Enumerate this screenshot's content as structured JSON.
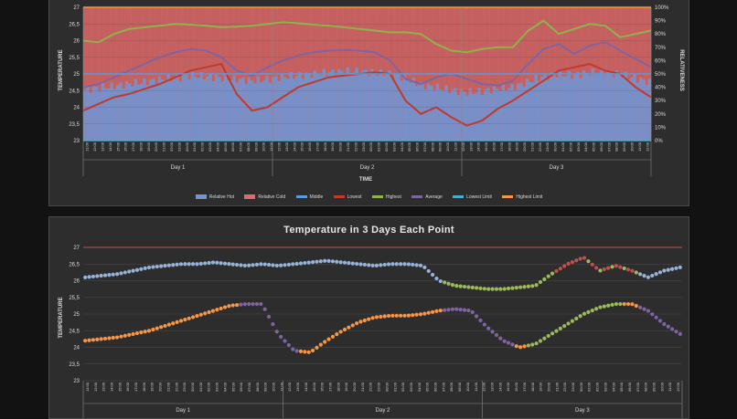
{
  "chart_data": [
    {
      "type": "line",
      "title": "",
      "xlabel": "TIME",
      "ylabel": "TEMPERATURE",
      "y2label": "RELATIVENESS",
      "ylim": [
        23,
        27
      ],
      "yticks": [
        "23",
        "23,5",
        "24",
        "24,5",
        "25",
        "25,5",
        "26",
        "26,5",
        "27"
      ],
      "y2lim": [
        0,
        100
      ],
      "y2ticks": [
        "0%",
        "10%",
        "20%",
        "30%",
        "40%",
        "50%",
        "60%",
        "70%",
        "80%",
        "90%",
        "100%"
      ],
      "day_labels": [
        "Day 1",
        "Day 2",
        "Day 3"
      ],
      "x_tick_labels": [
        "11:00",
        "12:00",
        "13:00",
        "14:00",
        "15:00",
        "16:00",
        "17:00",
        "18:00",
        "19:00",
        "20:00",
        "21:00",
        "22:00",
        "23:00",
        "00:00",
        "01:00",
        "02:00",
        "03:00",
        "04:00",
        "05:00",
        "06:00",
        "07:00",
        "08:00",
        "09:00",
        "10:00",
        "11:00",
        "12:00",
        "13:00",
        "14:00",
        "15:00",
        "16:00",
        "17:00",
        "18:00",
        "19:00",
        "20:00",
        "21:00",
        "22:00",
        "23:00",
        "00:00",
        "01:00",
        "02:00",
        "03:00",
        "04:00",
        "05:00",
        "06:00",
        "07:00",
        "08:00",
        "09:00",
        "10:00",
        "11:00",
        "12:00",
        "13:00",
        "14:00",
        "15:00",
        "16:00",
        "17:00",
        "18:00",
        "19:00",
        "20:00",
        "21:00",
        "22:00",
        "23:00",
        "00:00",
        "01:00",
        "02:00",
        "03:00",
        "04:00",
        "05:00",
        "06:00",
        "07:00",
        "08:00",
        "09:00",
        "10:00",
        "11:00",
        "12:00"
      ],
      "legend_position": "bottom",
      "legend": [
        "Relative Hot",
        "Relative Cold",
        "Middle",
        "Lowest",
        "Highest",
        "Average",
        "Lowest Limit",
        "Highest Limit"
      ],
      "colors": {
        "relative_hot": "#6f95d4",
        "relative_cold": "#e06a6a",
        "middle": "#5b9bd5",
        "lowest": "#c0392b",
        "highest": "#8fb34a",
        "average": "#8064a2",
        "lowest_limit": "#4bacc6",
        "highest_limit": "#f79646"
      },
      "series": [
        {
          "name": "Highest",
          "values": [
            26.0,
            25.95,
            26.2,
            26.35,
            26.4,
            26.45,
            26.5,
            26.48,
            26.45,
            26.4,
            26.42,
            26.45,
            26.5,
            26.55,
            26.52,
            26.48,
            26.45,
            26.4,
            26.35,
            26.3,
            26.25,
            26.25,
            26.2,
            25.9,
            25.7,
            25.65,
            25.75,
            25.8,
            25.8,
            26.3,
            26.6,
            26.2,
            26.35,
            26.5,
            26.45,
            26.1,
            26.2,
            26.3
          ]
        },
        {
          "name": "Average",
          "values": [
            24.6,
            24.7,
            24.9,
            25.1,
            25.3,
            25.5,
            25.65,
            25.75,
            25.7,
            25.5,
            25.1,
            24.95,
            25.2,
            25.4,
            25.55,
            25.65,
            25.7,
            25.72,
            25.7,
            25.65,
            25.4,
            24.85,
            24.7,
            24.9,
            25.0,
            24.85,
            24.7,
            24.65,
            24.8,
            25.3,
            25.75,
            25.9,
            25.6,
            25.85,
            25.95,
            25.7,
            25.45,
            25.2
          ]
        },
        {
          "name": "Lowest",
          "values": [
            23.9,
            24.1,
            24.3,
            24.4,
            24.55,
            24.7,
            24.9,
            25.1,
            25.2,
            25.3,
            24.4,
            23.9,
            24.0,
            24.3,
            24.6,
            24.75,
            24.9,
            24.95,
            25.0,
            25.05,
            25.0,
            24.2,
            23.8,
            24.0,
            23.7,
            23.45,
            23.6,
            23.95,
            24.2,
            24.5,
            24.8,
            25.1,
            25.2,
            25.3,
            25.1,
            25.0,
            24.6,
            24.3
          ]
        },
        {
          "name": "Middle",
          "values": [
            25.0,
            25.0
          ]
        },
        {
          "name": "Lowest Limit",
          "values": [
            23.0,
            23.0
          ]
        },
        {
          "name": "Highest Limit",
          "values": [
            27.0,
            27.0
          ]
        },
        {
          "name": "Relative Hot",
          "values": [
            38,
            40,
            41,
            43,
            44,
            46,
            47,
            49,
            48,
            47,
            46,
            45,
            46,
            48,
            49,
            50,
            51,
            52,
            52,
            51,
            50,
            47,
            42,
            40,
            38,
            36,
            37,
            39,
            40,
            44,
            48,
            50,
            49,
            51,
            52,
            50,
            47,
            44
          ]
        }
      ]
    },
    {
      "type": "scatter",
      "title": "Temperature in 3 Days Each Point",
      "xlabel": "",
      "ylabel": "TEMPERATURE",
      "ylim": [
        23,
        27
      ],
      "yticks": [
        "23",
        "23,5",
        "24",
        "24,5",
        "25",
        "25,5",
        "26",
        "26,5",
        "27"
      ],
      "day_labels": [
        "Day 1",
        "Day 2",
        "Day 3"
      ],
      "legend_position": "none",
      "colors": {
        "high": "#95b3d7",
        "low": "#f79646",
        "dip": "#8064a2",
        "green": "#9bbb59",
        "red": "#c0504d",
        "blue": "#5b9bd5",
        "limit": "#c0504d"
      },
      "series": [
        {
          "name": "Highest",
          "values": [
            26.1,
            26.15,
            26.2,
            26.3,
            26.4,
            26.45,
            26.5,
            26.5,
            26.55,
            26.5,
            26.45,
            26.5,
            26.45,
            26.5,
            26.55,
            26.6,
            26.55,
            26.5,
            26.45,
            26.5,
            26.5,
            26.45,
            26.0,
            25.85,
            25.8,
            25.75,
            25.75,
            25.8,
            25.85,
            26.2,
            26.5,
            26.7,
            26.3,
            26.45,
            26.3,
            26.1,
            26.3,
            26.4
          ]
        },
        {
          "name": "Lowest",
          "values": [
            24.2,
            24.25,
            24.3,
            24.4,
            24.5,
            24.65,
            24.8,
            24.95,
            25.1,
            25.25,
            25.3,
            25.3,
            24.4,
            23.9,
            23.85,
            24.2,
            24.5,
            24.75,
            24.9,
            24.95,
            24.95,
            25.0,
            25.1,
            25.15,
            25.1,
            24.6,
            24.2,
            24.0,
            24.1,
            24.4,
            24.7,
            25.0,
            25.2,
            25.3,
            25.3,
            25.1,
            24.7,
            24.4
          ]
        },
        {
          "name": "Highest Limit",
          "values": [
            27.0,
            27.0
          ]
        }
      ]
    }
  ]
}
